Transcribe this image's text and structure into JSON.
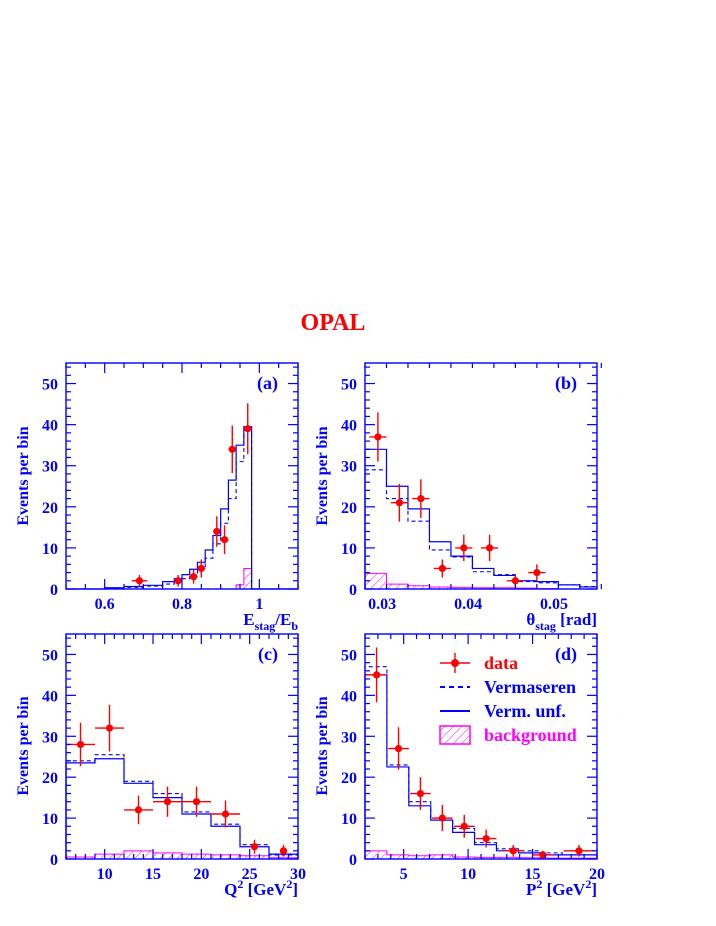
{
  "figure_title": "OPAL",
  "colors": {
    "axis": "#0000ff",
    "data": "#ff0000",
    "mc": "#0000ff",
    "background": "#ff00ff",
    "title": "#ff0000"
  },
  "chart_data": [
    {
      "panel": "(a)",
      "type": "histogram",
      "xlabel": "E_stag/E_b",
      "xlabel_main": "E",
      "xlabel_sub": "stag",
      "xlabel_mid": "/E",
      "xlabel_sub2": "b",
      "ylabel": "Events per bin",
      "xlim": [
        0.5,
        1.1
      ],
      "ylim": [
        0,
        55
      ],
      "xticks": [
        0.6,
        0.8,
        1
      ],
      "xtick_labels": [
        "0.6",
        "0.8",
        "1"
      ],
      "xminor": 0.05,
      "yticks": [
        0,
        10,
        20,
        30,
        40,
        50
      ],
      "ytick_labels": [
        "0",
        "10",
        "20",
        "30",
        "40",
        "50"
      ],
      "yminor": 2,
      "bin_edges": [
        0.5,
        0.55,
        0.6,
        0.65,
        0.7,
        0.75,
        0.78,
        0.8,
        0.82,
        0.84,
        0.86,
        0.88,
        0.9,
        0.92,
        0.94,
        0.96,
        0.98,
        1.0,
        1.05,
        1.1
      ],
      "vermaseren": [
        0,
        0,
        0.2,
        0.4,
        0.7,
        1.2,
        1.8,
        2.5,
        3.5,
        5,
        7.5,
        11,
        16,
        22,
        31,
        39,
        0,
        0,
        0
      ],
      "verm_unf": [
        0,
        0,
        0.3,
        0.6,
        0.9,
        1.8,
        2.5,
        3.5,
        4.8,
        6.5,
        9.5,
        13,
        19.5,
        26.5,
        35,
        39.5,
        0,
        0,
        0
      ],
      "background": [
        0,
        0,
        0,
        0,
        0,
        0,
        0,
        0,
        0,
        0,
        0,
        0,
        0,
        0,
        1,
        5,
        0,
        0,
        0
      ],
      "data": [
        {
          "x": 0.69,
          "y": 2,
          "xerr": 0.02,
          "yerr": 1.4
        },
        {
          "x": 0.79,
          "y": 2,
          "xerr": 0.01,
          "yerr": 1.4
        },
        {
          "x": 0.83,
          "y": 3,
          "xerr": 0.01,
          "yerr": 1.7
        },
        {
          "x": 0.85,
          "y": 5,
          "xerr": 0.01,
          "yerr": 2.2
        },
        {
          "x": 0.89,
          "y": 14,
          "xerr": 0.01,
          "yerr": 3.7
        },
        {
          "x": 0.91,
          "y": 12,
          "xerr": 0.01,
          "yerr": 3.5
        },
        {
          "x": 0.93,
          "y": 34,
          "xerr": 0.01,
          "yerr": 5.8
        },
        {
          "x": 0.97,
          "y": 39,
          "xerr": 0.01,
          "yerr": 6.2
        }
      ]
    },
    {
      "panel": "(b)",
      "type": "histogram",
      "xlabel": "θ_stag [rad]",
      "xlabel_main": "θ",
      "xlabel_sub": "stag",
      "xlabel_mid": " [rad]",
      "xlabel_sub2": "",
      "ylabel": "Events per bin",
      "xlim": [
        0.028,
        0.055
      ],
      "ylim": [
        0,
        55
      ],
      "xticks": [
        0.03,
        0.04,
        0.05
      ],
      "xtick_labels": [
        "0.03",
        "0.04",
        "0.05"
      ],
      "xminor": 0.0025,
      "yticks": [
        0,
        10,
        20,
        30,
        40,
        50
      ],
      "ytick_labels": [
        "0",
        "10",
        "20",
        "30",
        "40",
        "50"
      ],
      "yminor": 2,
      "bin_edges": [
        0.028,
        0.0305,
        0.033,
        0.0355,
        0.038,
        0.0405,
        0.043,
        0.0455,
        0.048,
        0.0505,
        0.053,
        0.055
      ],
      "vermaseren": [
        29,
        22,
        16.5,
        9.5,
        7.8,
        4.2,
        3.5,
        1.8,
        1.5,
        1,
        0.6
      ],
      "verm_unf": [
        34,
        25,
        19.5,
        11.5,
        8,
        5,
        3.3,
        2,
        1.8,
        1,
        0.5
      ],
      "background": [
        3.8,
        1.2,
        0.8,
        0.5,
        0.4,
        0.3,
        0.3,
        0.2,
        0.1,
        0,
        0
      ],
      "data": [
        {
          "x": 0.0295,
          "y": 37,
          "xerr": 0.001,
          "yerr": 6
        },
        {
          "x": 0.032,
          "y": 21,
          "xerr": 0.001,
          "yerr": 4.6
        },
        {
          "x": 0.0345,
          "y": 22,
          "xerr": 0.001,
          "yerr": 4.7
        },
        {
          "x": 0.037,
          "y": 5,
          "xerr": 0.001,
          "yerr": 2.2
        },
        {
          "x": 0.0395,
          "y": 10,
          "xerr": 0.001,
          "yerr": 3.2
        },
        {
          "x": 0.0425,
          "y": 10,
          "xerr": 0.001,
          "yerr": 3.2
        },
        {
          "x": 0.0455,
          "y": 2,
          "xerr": 0.001,
          "yerr": 1.4
        },
        {
          "x": 0.048,
          "y": 4,
          "xerr": 0.001,
          "yerr": 2
        }
      ]
    },
    {
      "panel": "(c)",
      "type": "histogram",
      "xlabel": "Q^2 [GeV^2]",
      "xlabel_main": "Q",
      "xlabel_sup": "2",
      "xlabel_mid": " [GeV",
      "xlabel_sup2": "2",
      "xlabel_end": "]",
      "ylabel": "Events per bin",
      "xlim": [
        6,
        30
      ],
      "ylim": [
        0,
        55
      ],
      "xticks": [
        10,
        15,
        20,
        25,
        30
      ],
      "xtick_labels": [
        "10",
        "15",
        "20",
        "25",
        "30"
      ],
      "xminor": 1,
      "yticks": [
        0,
        10,
        20,
        30,
        40,
        50
      ],
      "ytick_labels": [
        "0",
        "10",
        "20",
        "30",
        "40",
        "50"
      ],
      "yminor": 2,
      "bin_edges": [
        6,
        9,
        12,
        15,
        18,
        21,
        24,
        27,
        30
      ],
      "vermaseren": [
        24,
        25.5,
        19,
        16,
        11.5,
        8.5,
        3.5,
        1
      ],
      "verm_unf": [
        23.5,
        24.5,
        18.5,
        15,
        11,
        8,
        3,
        1.2
      ],
      "background": [
        0.5,
        1.2,
        2,
        1.5,
        1.2,
        1,
        0.8,
        0.3
      ],
      "data": [
        {
          "x": 7.5,
          "y": 28,
          "xerr": 1.5,
          "yerr": 5.3
        },
        {
          "x": 10.5,
          "y": 32,
          "xerr": 1.5,
          "yerr": 5.7
        },
        {
          "x": 13.5,
          "y": 12,
          "xerr": 1.5,
          "yerr": 3.5
        },
        {
          "x": 16.5,
          "y": 14,
          "xerr": 1.5,
          "yerr": 3.7
        },
        {
          "x": 19.5,
          "y": 14,
          "xerr": 1.5,
          "yerr": 3.7
        },
        {
          "x": 22.5,
          "y": 11,
          "xerr": 1.5,
          "yerr": 3.3
        },
        {
          "x": 25.5,
          "y": 3,
          "xerr": 0.3,
          "yerr": 1.7
        },
        {
          "x": 28.5,
          "y": 2,
          "xerr": 0.3,
          "yerr": 1.4
        }
      ]
    },
    {
      "panel": "(d)",
      "type": "histogram",
      "xlabel": "P^2 [GeV^2]",
      "xlabel_main": "P",
      "xlabel_sup": "2",
      "xlabel_mid": " [GeV",
      "xlabel_sup2": "2",
      "xlabel_end": "]",
      "ylabel": "Events per bin",
      "xlim": [
        2,
        20
      ],
      "ylim": [
        0,
        55
      ],
      "xticks": [
        5,
        10,
        15,
        20
      ],
      "xtick_labels": [
        "5",
        "10",
        "15",
        "20"
      ],
      "xminor": 1,
      "yticks": [
        0,
        10,
        20,
        30,
        40,
        50
      ],
      "ytick_labels": [
        "0",
        "10",
        "20",
        "30",
        "40",
        "50"
      ],
      "yminor": 2,
      "bin_edges": [
        2,
        3.7,
        5.4,
        7.1,
        8.8,
        10.5,
        12.2,
        13.9,
        15.6,
        17.3,
        20
      ],
      "vermaseren": [
        47,
        23,
        14,
        10,
        7.5,
        4,
        2.5,
        2,
        1.5,
        1
      ],
      "verm_unf": [
        45,
        22.5,
        13,
        9.5,
        6.5,
        3.5,
        2,
        1.5,
        1,
        1
      ],
      "background": [
        2,
        1,
        0.8,
        1,
        0.5,
        0.4,
        0.4,
        0.3,
        0.2,
        0.2
      ],
      "data": [
        {
          "x": 2.9,
          "y": 45,
          "xerr": 0.8,
          "yerr": 6.7
        },
        {
          "x": 4.6,
          "y": 27,
          "xerr": 0.8,
          "yerr": 5.2
        },
        {
          "x": 6.3,
          "y": 16,
          "xerr": 0.8,
          "yerr": 4
        },
        {
          "x": 8.0,
          "y": 10,
          "xerr": 0.8,
          "yerr": 3.2
        },
        {
          "x": 9.7,
          "y": 8,
          "xerr": 0.8,
          "yerr": 2.8
        },
        {
          "x": 11.4,
          "y": 5,
          "xerr": 0.8,
          "yerr": 2.2
        },
        {
          "x": 13.5,
          "y": 2,
          "xerr": 0.8,
          "yerr": 1.4
        },
        {
          "x": 15.8,
          "y": 1,
          "xerr": 0.8,
          "yerr": 1
        },
        {
          "x": 18.6,
          "y": 2,
          "xerr": 1.2,
          "yerr": 1.4
        }
      ]
    }
  ],
  "legend": {
    "placement": "panel (d), top-right",
    "entries": [
      {
        "label": "data",
        "style": "marker",
        "color": "#ff0000"
      },
      {
        "label": "Vermaseren",
        "style": "dashed",
        "color": "#0000ff"
      },
      {
        "label": "Verm. unf.",
        "style": "solid",
        "color": "#0000ff"
      },
      {
        "label": "background",
        "style": "hatched",
        "color": "#ff00ff"
      }
    ]
  }
}
